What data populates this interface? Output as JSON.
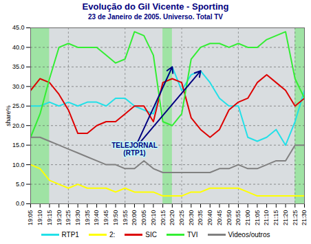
{
  "chart_data": {
    "type": "line",
    "title": "Evolução do Gil Vicente - Sporting",
    "subtitle": "23 de Janeiro de 2005. Universo. Total TV",
    "y_label": "share%",
    "ylim": [
      0,
      45
    ],
    "yticks": [
      {
        "value": 0,
        "label": "0.0"
      },
      {
        "value": 5,
        "label": "5.0"
      },
      {
        "value": 10,
        "label": "10.0"
      },
      {
        "value": 15,
        "label": "15.0"
      },
      {
        "value": 20,
        "label": "20.0"
      },
      {
        "value": 25,
        "label": "25.0"
      },
      {
        "value": 30,
        "label": "30.0"
      },
      {
        "value": 35,
        "label": "35.0"
      },
      {
        "value": 40,
        "label": "40.0"
      },
      {
        "value": 45,
        "label": "45.0"
      }
    ],
    "grid": true,
    "legend": "bottom",
    "categories": [
      "19:05",
      "19:10",
      "19:15",
      "19:20",
      "19:25",
      "19:30",
      "19:35",
      "19:40",
      "19:45",
      "19:50",
      "19:55",
      "20:00",
      "20:05",
      "20:10",
      "20:15",
      "20:20",
      "20:25",
      "20:30",
      "20:35",
      "20:40",
      "20:45",
      "20:50",
      "20:55",
      "21:00",
      "21:05",
      "21:10",
      "21:15",
      "21:20",
      "21:25",
      "21:30"
    ],
    "series": [
      {
        "name": "RTP1",
        "color": "#22e0e8",
        "values": [
          25,
          25,
          26,
          25,
          26,
          25,
          26,
          26,
          25,
          27,
          27,
          25,
          24,
          23,
          30,
          35,
          29,
          33,
          34,
          31,
          27,
          25,
          25,
          17,
          16,
          17,
          19,
          15,
          21,
          29
        ]
      },
      {
        "name": "2:",
        "color": "#ffff00",
        "values": [
          10,
          9,
          6,
          5,
          4,
          5,
          4,
          4,
          4,
          3,
          4,
          3,
          3,
          3,
          2,
          2,
          2,
          3,
          3,
          4,
          4,
          4,
          4,
          3,
          2,
          2,
          2,
          2,
          2,
          2
        ]
      },
      {
        "name": "SIC",
        "color": "#dd0000",
        "values": [
          29,
          32,
          31,
          28,
          24,
          18,
          18,
          20,
          21,
          21,
          23,
          25,
          25,
          21,
          31,
          32,
          31,
          22,
          19,
          17,
          19,
          24,
          26,
          27,
          31,
          33,
          31,
          29,
          25,
          27
        ]
      },
      {
        "name": "TVI",
        "color": "#33ee33",
        "values": [
          17,
          23,
          32,
          40,
          41,
          40,
          40,
          40,
          38,
          36,
          37,
          44,
          43,
          38,
          21,
          20,
          23,
          37,
          40,
          41,
          41,
          40,
          41,
          40,
          40,
          42,
          43,
          44,
          32,
          27
        ]
      },
      {
        "name": "Videos/outros",
        "color": "#808080",
        "values": [
          17,
          17,
          16,
          15,
          14,
          13,
          12,
          11,
          10,
          10,
          9,
          9,
          11,
          9,
          8,
          8,
          8,
          8,
          8,
          8,
          9,
          9,
          10,
          9,
          9,
          10,
          11,
          11,
          15,
          15
        ]
      }
    ],
    "shaded": [
      {
        "from": "19:05",
        "to": "19:15",
        "color": "#33ee33"
      },
      {
        "from": "20:15",
        "to": "20:20",
        "color": "#33ee33"
      },
      {
        "from": "21:25",
        "to": "21:30",
        "color": "#33ee33"
      }
    ],
    "annotation": {
      "text": "TELEJORNAL\n(RTP1)",
      "x": "20:00",
      "y": 14,
      "series": "RTP1",
      "arrows_to": [
        "20:20",
        "20:35"
      ]
    }
  }
}
